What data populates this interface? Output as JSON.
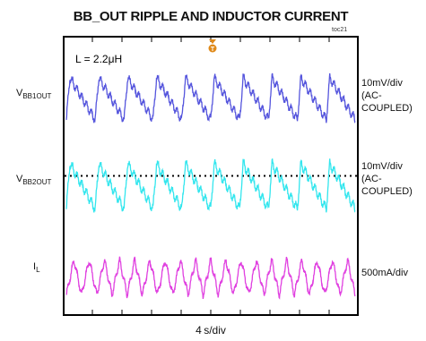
{
  "title": "BB_OUT RIPPLE AND INDUCTOR CURRENT",
  "figure_id": "toc21",
  "annotation": "L = 2.2μH",
  "trigger_marker": "T",
  "channels": [
    {
      "name": "V",
      "sub": "BB1OUT",
      "scale": [
        "10mV/div",
        "(AC-",
        "COUPLED)"
      ],
      "color": "#5555dd"
    },
    {
      "name": "V",
      "sub": "BB2OUT",
      "scale": [
        "10mV/div",
        "(AC-",
        "COUPLED)"
      ],
      "color": "#33e6ee"
    },
    {
      "name": "I",
      "sub": "L",
      "scale": [
        "500mA/div"
      ],
      "color": "#e040e0"
    }
  ],
  "x_scale": "4 s/div",
  "chart_data": {
    "type": "line",
    "title": "BB_OUT RIPPLE AND INDUCTOR CURRENT",
    "xlabel": "4 s/div",
    "x_divisions": 10,
    "y_divisions": 8,
    "grid": false,
    "series": [
      {
        "name": "VBB1OUT",
        "scale": "10mV/div (AC-COUPLED)",
        "waveform": "sawtooth",
        "cycles": 10,
        "peak_to_peak_div": 1.2
      },
      {
        "name": "VBB2OUT",
        "scale": "10mV/div (AC-COUPLED)",
        "waveform": "sawtooth",
        "cycles": 10,
        "peak_to_peak_div": 1.3
      },
      {
        "name": "IL",
        "scale": "500mA/div",
        "waveform": "triangle",
        "cycles": 19,
        "peak_to_peak_div": 1.0
      }
    ]
  }
}
